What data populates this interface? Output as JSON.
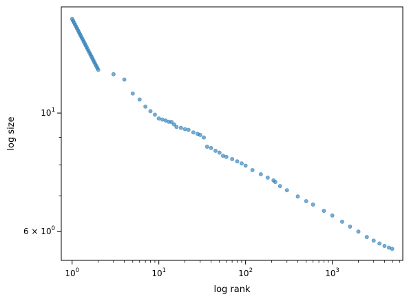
{
  "chart_data": {
    "type": "scatter",
    "title": "",
    "xlabel": "log rank",
    "ylabel": "log size",
    "xscale": "log",
    "yscale": "log",
    "xlim": [
      0.75,
      6500
    ],
    "ylim": [
      5.3,
      15.8
    ],
    "grid": false,
    "legend": "none",
    "x_ticks": [
      {
        "value": 1,
        "base": "10",
        "exp": "0"
      },
      {
        "value": 10,
        "base": "10",
        "exp": "1"
      },
      {
        "value": 100,
        "base": "10",
        "exp": "2"
      },
      {
        "value": 1000,
        "base": "10",
        "exp": "3"
      }
    ],
    "y_ticks": [
      {
        "value": 10,
        "mant": "",
        "base": "10",
        "exp": "1"
      },
      {
        "value": 6,
        "mant": "6 × ",
        "base": "10",
        "exp": "0"
      }
    ],
    "series": [
      {
        "name": "",
        "color": "#1f77b4",
        "alpha": 0.6,
        "points": [
          [
            1,
            15.0
          ],
          [
            2,
            12.05
          ],
          [
            3,
            11.82
          ],
          [
            4,
            11.55
          ],
          [
            5,
            10.88
          ],
          [
            6,
            10.6
          ],
          [
            7,
            10.28
          ],
          [
            8,
            10.08
          ],
          [
            9,
            9.93
          ],
          [
            10,
            9.77
          ],
          [
            11,
            9.72
          ],
          [
            12,
            9.68
          ],
          [
            13,
            9.63
          ],
          [
            14,
            9.62
          ],
          [
            15,
            9.52
          ],
          [
            16,
            9.42
          ],
          [
            18,
            9.38
          ],
          [
            20,
            9.33
          ],
          [
            22,
            9.3
          ],
          [
            25,
            9.2
          ],
          [
            28,
            9.14
          ],
          [
            30,
            9.1
          ],
          [
            33,
            9.0
          ],
          [
            36,
            8.65
          ],
          [
            40,
            8.6
          ],
          [
            45,
            8.5
          ],
          [
            50,
            8.43
          ],
          [
            55,
            8.32
          ],
          [
            60,
            8.28
          ],
          [
            70,
            8.2
          ],
          [
            80,
            8.12
          ],
          [
            90,
            8.05
          ],
          [
            100,
            7.97
          ],
          [
            120,
            7.82
          ],
          [
            150,
            7.68
          ],
          [
            180,
            7.57
          ],
          [
            210,
            7.48
          ],
          [
            220,
            7.43
          ],
          [
            250,
            7.3
          ],
          [
            300,
            7.17
          ],
          [
            400,
            6.98
          ],
          [
            500,
            6.84
          ],
          [
            600,
            6.74
          ],
          [
            800,
            6.56
          ],
          [
            1000,
            6.43
          ],
          [
            1300,
            6.26
          ],
          [
            1600,
            6.13
          ],
          [
            2000,
            6.0
          ],
          [
            2500,
            5.86
          ],
          [
            3000,
            5.77
          ],
          [
            3500,
            5.7
          ],
          [
            4000,
            5.64
          ],
          [
            4500,
            5.6
          ],
          [
            4900,
            5.57
          ]
        ]
      }
    ]
  }
}
